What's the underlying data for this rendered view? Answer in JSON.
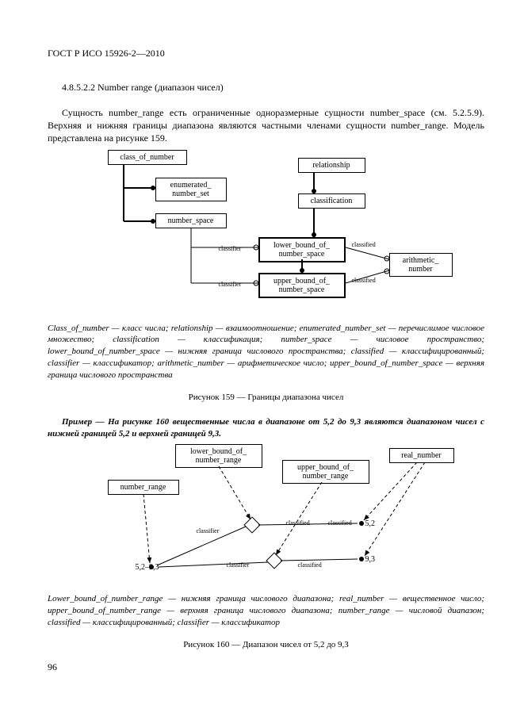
{
  "header": {
    "standard": "ГОСТ Р ИСО 15926-2—2010"
  },
  "section": {
    "numtitle": "4.8.5.2.2 Number range (диапазон чисел)"
  },
  "p1": "Сущность number_range есть ограниченные одноразмерные сущности number_space (см. 5.2.5.9). Верхняя и нижняя границы диапазона являются частными членами сущности number_range. Модель представлена на рисунке 159.",
  "fig159": {
    "nodes": {
      "class_of_number": "class_of_number",
      "enumerated_number_set": "enumerated_\nnumber_set",
      "number_space": "number_space",
      "relationship": "relationship",
      "classification": "classification",
      "lower_bound": "lower_bound_of_\nnumber_space",
      "upper_bound": "upper_bound_of_\nnumber_space",
      "arithmetic_number": "arithmetic_\nnumber"
    },
    "edge_labels": {
      "classifier1": "classifier",
      "classifier2": "classifier",
      "classified1": "classified",
      "classified2": "classified"
    }
  },
  "caption159_gloss": "Class_of_number — класс числа; relationship — взаимоотношение; enumerated_number_set — перечислимое числовое множество; classification — классификация; number_space — числовое пространство; lower_bound_of_number_space — нижняя граница числового пространства; classified — классифицированный; classifier — классификатор; arithmetic_number — арифметическое число; upper_bound_of_number_space — верхняя граница числового пространства",
  "caption159": "Рисунок 159 — Границы диапазона чисел",
  "example": "Пример — На рисунке 160 вещественные числа в диапазоне от 5,2 до 9,3 являются диапазоном чисел с нижней границей 5,2 и верхней границей 9,3.",
  "fig160": {
    "nodes": {
      "lower_bound_range": "lower_bound_of_\nnumber_range",
      "upper_bound_range": "upper_bound_of_\nnumber_range",
      "real_number": "real_number",
      "number_range": "number_range"
    },
    "values": {
      "range": "5,2–9,3",
      "v52": "5,2",
      "v93": "9,3"
    },
    "edge_labels": {
      "classifier1": "classifier",
      "classifier2": "classifier",
      "classified1": "classified",
      "classified2": "classified",
      "classified3": "classified"
    }
  },
  "caption160_gloss": "Lower_bound_of_number_range — нижняя граница числового диапазона; real_number — вещественное число; upper_bound_of_number_range — верхняя граница числового диапазона; number_range — числовой диапазон; classified — классифицированный; classifier — классификатор",
  "caption160": "Рисунок 160 — Диапазон чисел от 5,2 до 9,3",
  "pagenum": "96",
  "colors": {
    "line": "#000000",
    "bg": "#ffffff"
  }
}
